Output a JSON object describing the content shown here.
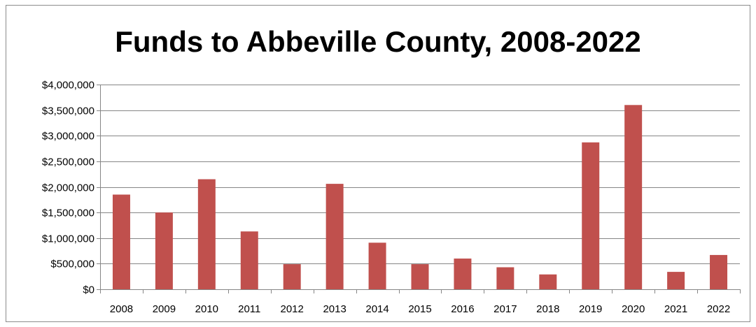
{
  "chart_data": {
    "type": "bar",
    "title": "Funds to Abbeville County, 2008-2022",
    "categories": [
      "2008",
      "2009",
      "2010",
      "2011",
      "2012",
      "2013",
      "2014",
      "2015",
      "2016",
      "2017",
      "2018",
      "2019",
      "2020",
      "2021",
      "2022"
    ],
    "series": [
      {
        "values": [
          1850000,
          1500000,
          2150000,
          1130000,
          490000,
          2060000,
          910000,
          490000,
          600000,
          430000,
          290000,
          2870000,
          3600000,
          340000,
          670000
        ],
        "color": "#c0504d"
      }
    ],
    "ylim": [
      0,
      4000000
    ],
    "y_ticks": [
      0,
      500000,
      1000000,
      1500000,
      2000000,
      2500000,
      3000000,
      3500000,
      4000000
    ],
    "y_tick_labels": [
      "$0",
      "$500,000",
      "$1,000,000",
      "$1,500,000",
      "$2,000,000",
      "$2,500,000",
      "$3,000,000",
      "$3,500,000",
      "$4,000,000"
    ],
    "grid": true,
    "legend": false,
    "gridline_color": "#868686"
  }
}
